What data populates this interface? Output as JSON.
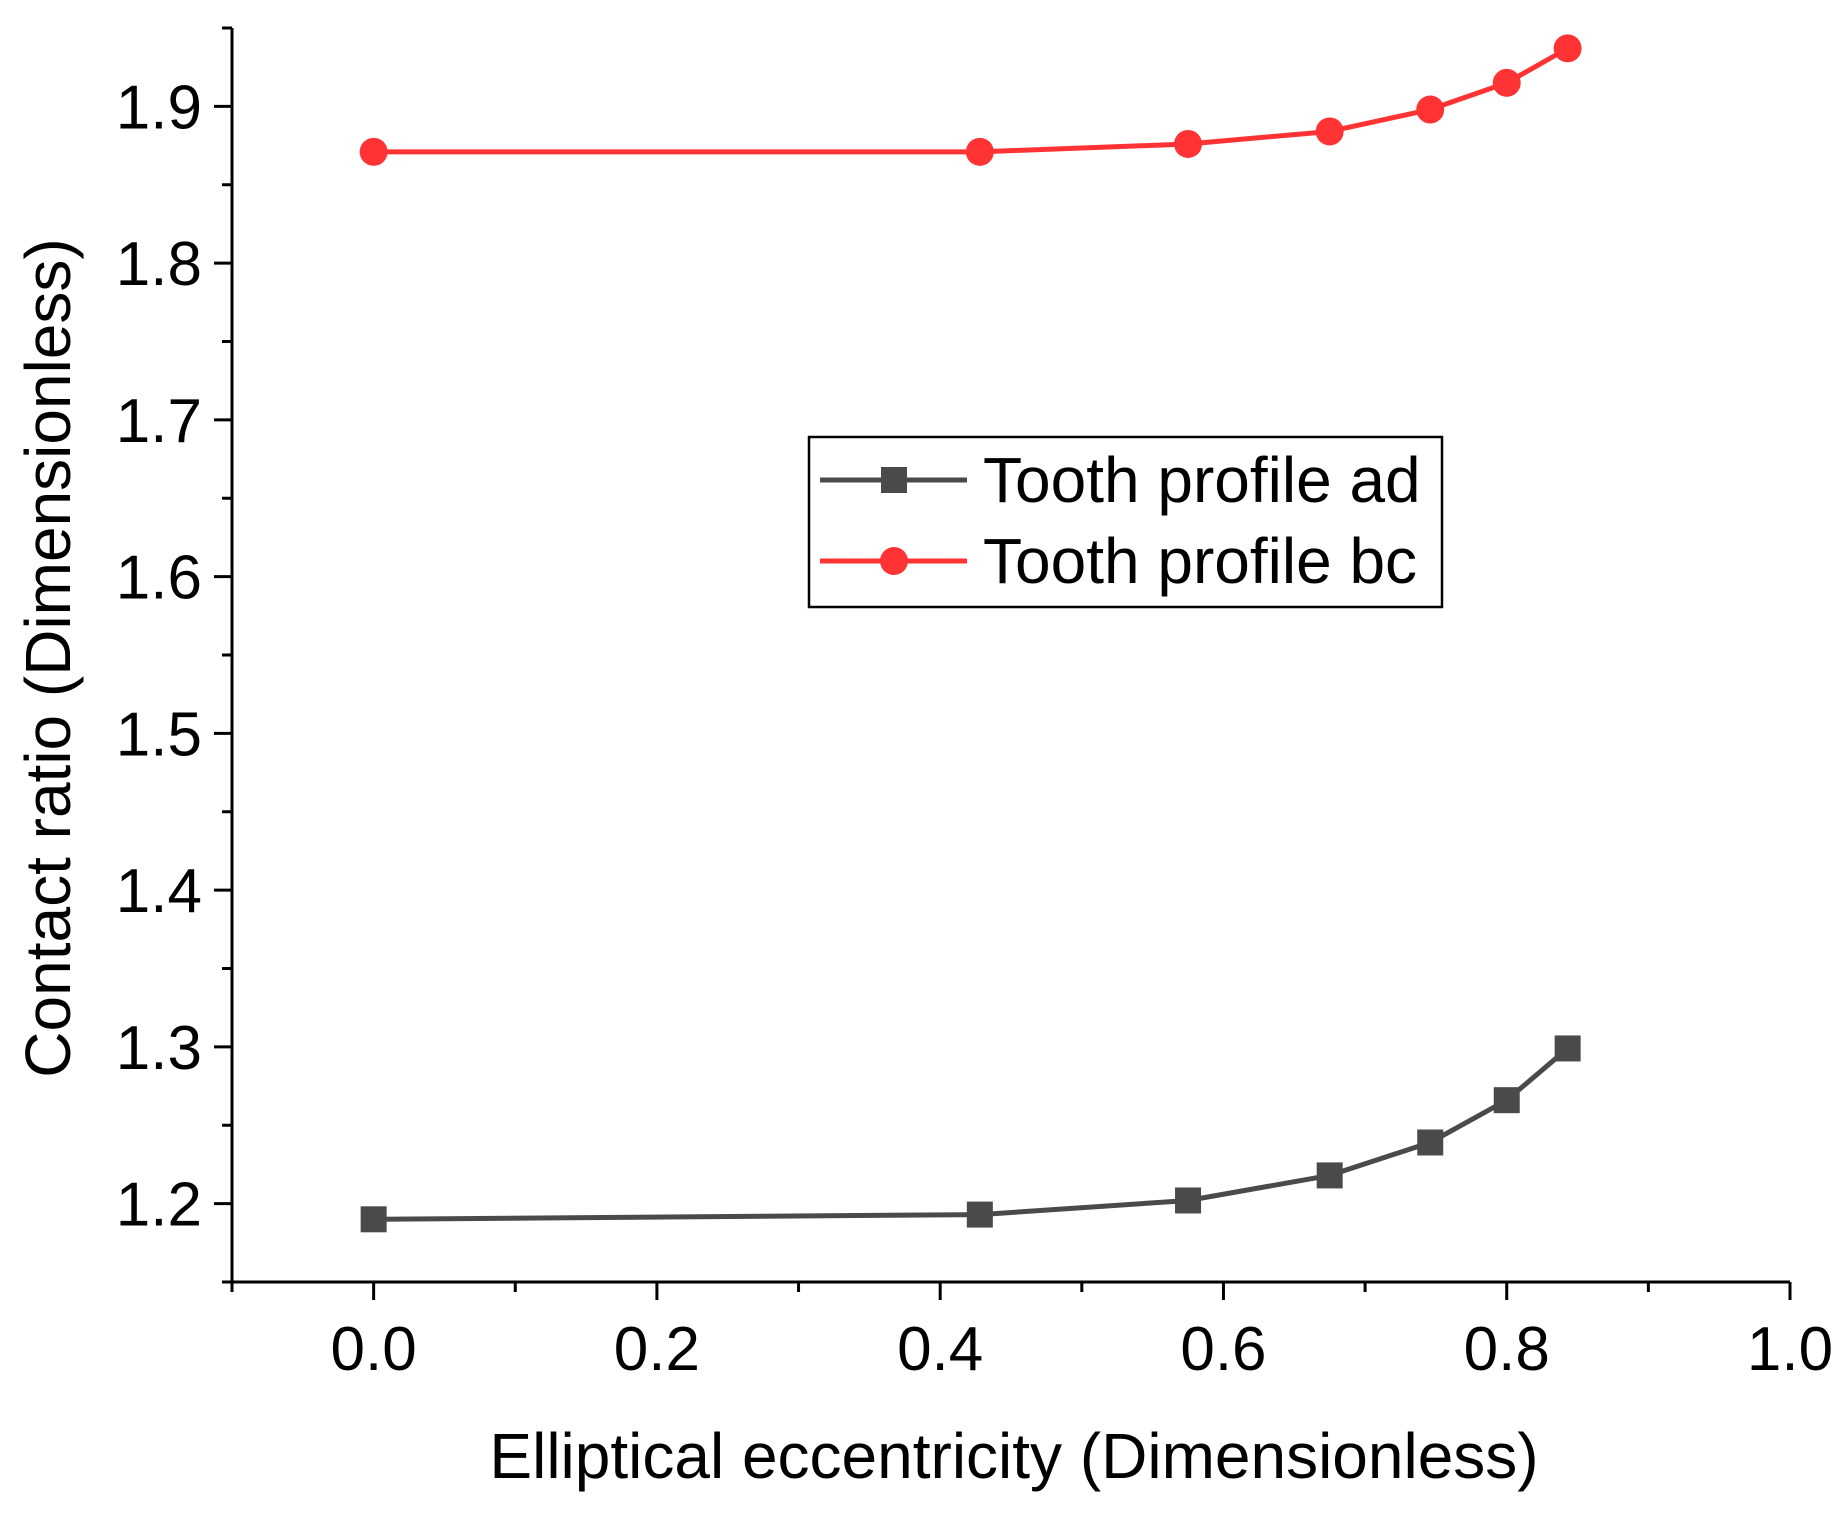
{
  "chart_data": {
    "type": "line",
    "title": "",
    "xlabel": "Elliptical eccentricity (Dimensionless)",
    "ylabel": "Contact ratio (Dimensionless)",
    "xlim": [
      -0.1,
      1.0
    ],
    "ylim": [
      1.15,
      1.95
    ],
    "xticks": [
      0.0,
      0.2,
      0.4,
      0.6,
      0.8,
      1.0
    ],
    "xtick_labels": [
      "0.0",
      "0.2",
      "0.4",
      "0.6",
      "0.8",
      "1.0"
    ],
    "yticks": [
      1.2,
      1.3,
      1.4,
      1.5,
      1.6,
      1.7,
      1.8,
      1.9
    ],
    "ytick_labels": [
      "1.2",
      "1.3",
      "1.4",
      "1.5",
      "1.6",
      "1.7",
      "1.8",
      "1.9"
    ],
    "grid": false,
    "legend_position": "center-right",
    "series": [
      {
        "name": "Tooth profile ad",
        "color": "#4a4a4a",
        "marker": "square",
        "x": [
          0.0,
          0.428,
          0.575,
          0.675,
          0.746,
          0.8,
          0.843
        ],
        "y": [
          1.19,
          1.193,
          1.202,
          1.218,
          1.239,
          1.266,
          1.299
        ]
      },
      {
        "name": "Tooth profile bc",
        "color": "#ff3333",
        "marker": "circle",
        "x": [
          0.0,
          0.428,
          0.575,
          0.675,
          0.746,
          0.8,
          0.843
        ],
        "y": [
          1.871,
          1.871,
          1.876,
          1.884,
          1.898,
          1.915,
          1.937
        ]
      }
    ]
  }
}
